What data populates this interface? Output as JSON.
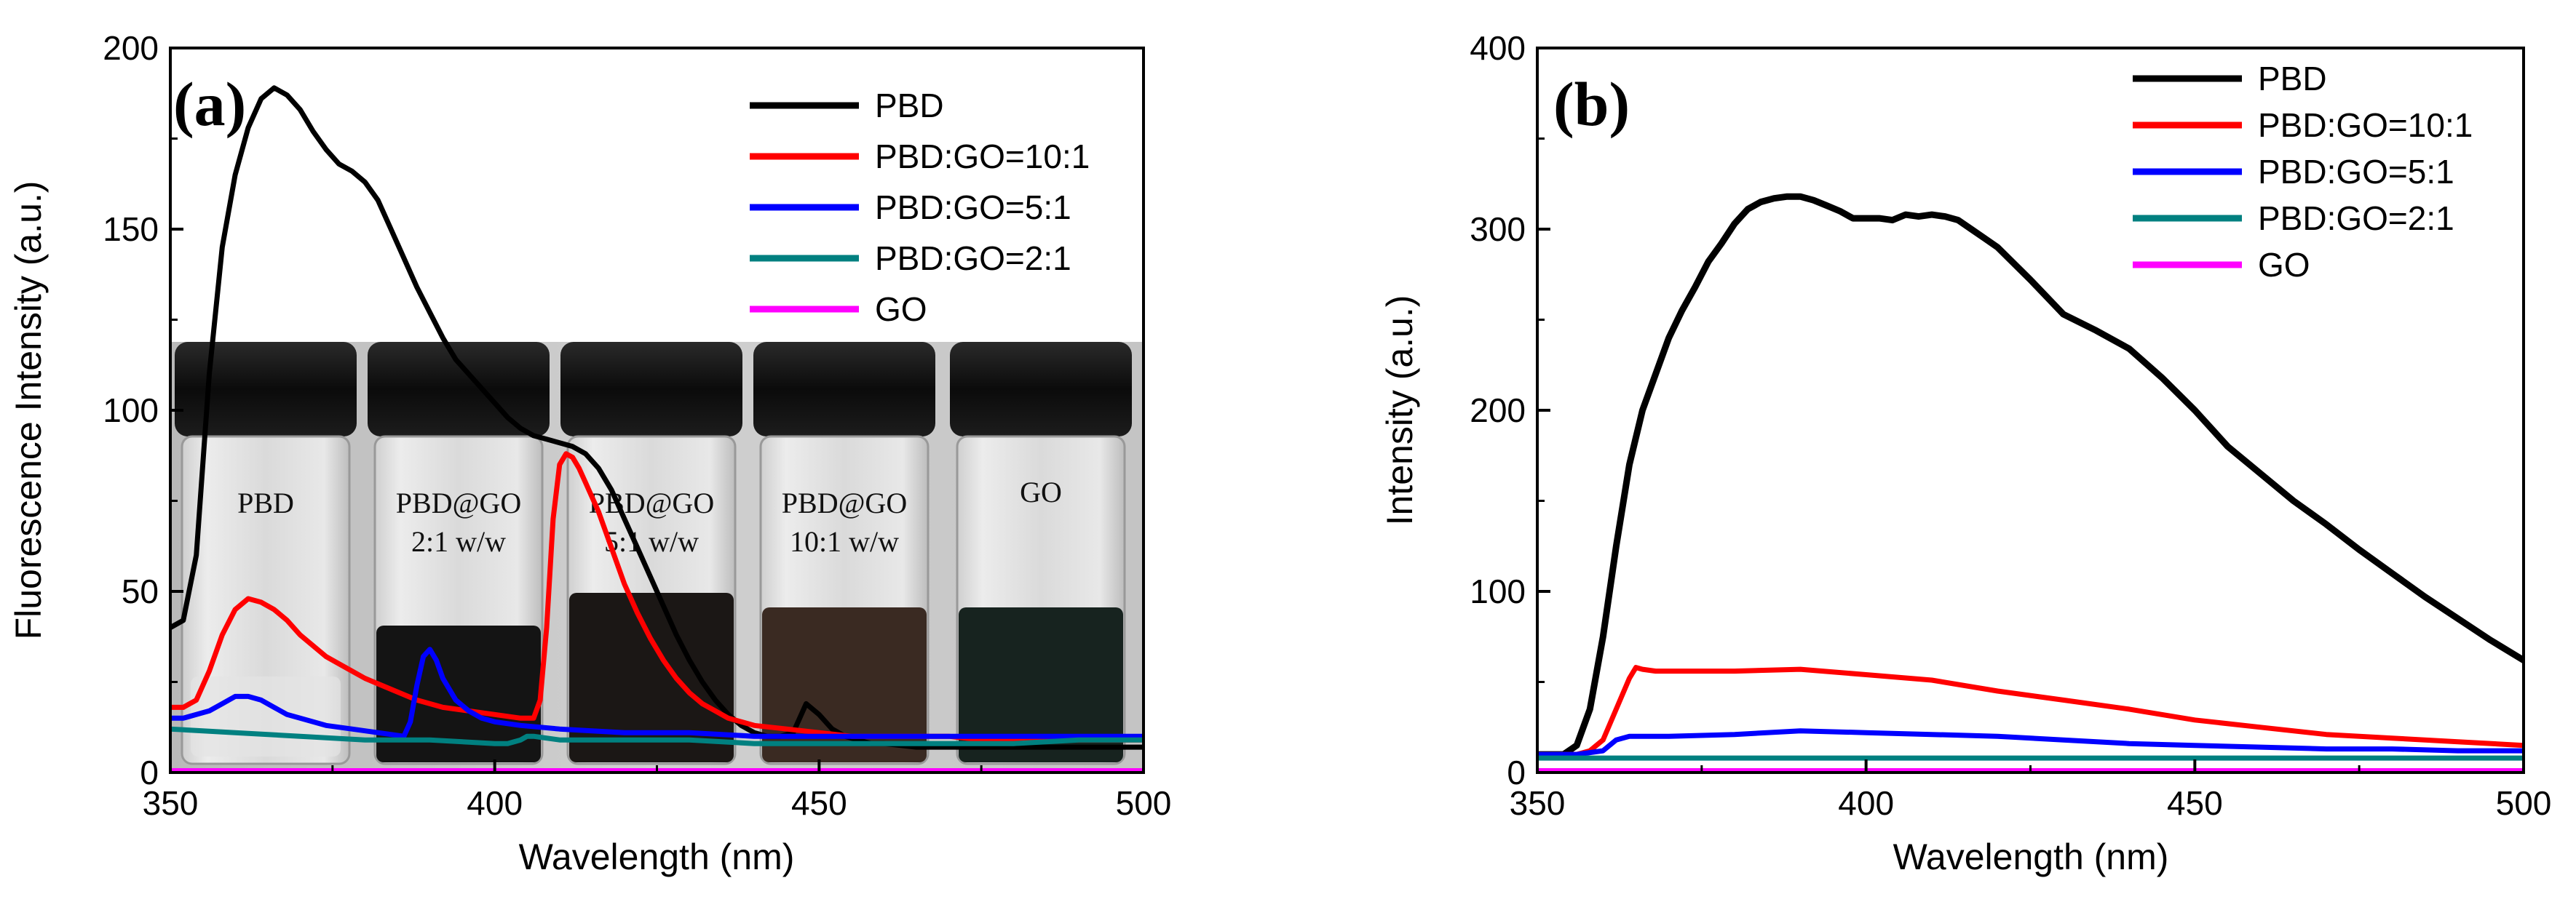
{
  "chart_data": [
    {
      "type": "line",
      "panel_label": "(a)",
      "xlabel": "Wavelength (nm)",
      "ylabel": "Fluorescence Intensity (a.u.)",
      "xlim": [
        350,
        500
      ],
      "ylim": [
        0,
        200
      ],
      "xticks": [
        350,
        400,
        450,
        500
      ],
      "yticks": [
        0,
        50,
        100,
        150,
        200
      ],
      "legend_position": "top-right",
      "inset_photo": {
        "description_labels": [
          "PBD",
          "PBD@GO 2:1 w/w",
          "PBD@GO 5:1 w/w",
          "PBD@GO 10:1 w/w",
          "GO"
        ]
      },
      "series": [
        {
          "name": "PBD",
          "color": "#000000",
          "x": [
            350,
            352,
            354,
            356,
            358,
            360,
            362,
            364,
            366,
            368,
            370,
            372,
            374,
            376,
            378,
            380,
            382,
            384,
            386,
            388,
            390,
            392,
            394,
            396,
            398,
            400,
            402,
            404,
            406,
            408,
            410,
            412,
            414,
            416,
            418,
            420,
            422,
            424,
            426,
            428,
            430,
            432,
            434,
            436,
            438,
            440,
            442,
            444,
            446,
            448,
            450,
            452,
            454,
            456,
            458,
            460,
            465,
            470,
            475,
            480,
            485,
            490,
            495,
            500
          ],
          "y": [
            40,
            42,
            60,
            110,
            145,
            165,
            178,
            186,
            189,
            187,
            183,
            177,
            172,
            168,
            166,
            163,
            158,
            150,
            142,
            134,
            127,
            120,
            114,
            110,
            106,
            102,
            98,
            95,
            93,
            92,
            91,
            90,
            88,
            84,
            78,
            70,
            62,
            54,
            46,
            38,
            31,
            25,
            20,
            16,
            13,
            11,
            10,
            10,
            11,
            19,
            16,
            12,
            10,
            9,
            8,
            8,
            7,
            7,
            7,
            7,
            7,
            7,
            7,
            7
          ]
        },
        {
          "name": "PBD:GO=10:1",
          "color": "#ff0000",
          "x": [
            350,
            352,
            354,
            356,
            358,
            360,
            362,
            364,
            366,
            368,
            370,
            372,
            374,
            376,
            378,
            380,
            384,
            388,
            392,
            396,
            400,
            404,
            406,
            407,
            408,
            409,
            410,
            411,
            412,
            413,
            414,
            416,
            418,
            420,
            422,
            424,
            426,
            428,
            430,
            432,
            434,
            436,
            438,
            440,
            445,
            450,
            455,
            460,
            465,
            470,
            475,
            480,
            485,
            490,
            495,
            500
          ],
          "y": [
            18,
            18,
            20,
            28,
            38,
            45,
            48,
            47,
            45,
            42,
            38,
            35,
            32,
            30,
            28,
            26,
            23,
            20,
            18,
            17,
            16,
            15,
            15,
            20,
            40,
            70,
            85,
            88,
            87,
            84,
            80,
            72,
            62,
            52,
            44,
            37,
            31,
            26,
            22,
            19,
            17,
            15,
            14,
            13,
            12,
            11,
            10,
            10,
            10,
            10,
            9,
            9,
            9,
            9,
            9,
            9
          ]
        },
        {
          "name": "PBD:GO=5:1",
          "color": "#0000ff",
          "x": [
            350,
            352,
            354,
            356,
            358,
            360,
            362,
            364,
            366,
            368,
            370,
            374,
            378,
            382,
            386,
            387,
            388,
            389,
            390,
            391,
            392,
            394,
            396,
            398,
            400,
            404,
            410,
            420,
            430,
            440,
            450,
            460,
            470,
            480,
            490,
            500
          ],
          "y": [
            15,
            15,
            16,
            17,
            19,
            21,
            21,
            20,
            18,
            16,
            15,
            13,
            12,
            11,
            10,
            14,
            24,
            32,
            34,
            31,
            26,
            20,
            17,
            15,
            14,
            13,
            12,
            11,
            11,
            10,
            10,
            10,
            10,
            10,
            10,
            10
          ]
        },
        {
          "name": "PBD:GO=2:1",
          "color": "#008080",
          "x": [
            350,
            360,
            370,
            380,
            390,
            400,
            402,
            404,
            405,
            406,
            410,
            420,
            430,
            440,
            450,
            460,
            470,
            480,
            490,
            500
          ],
          "y": [
            12,
            11,
            10,
            9,
            9,
            8,
            8,
            9,
            10,
            10,
            9,
            9,
            9,
            8,
            8,
            8,
            8,
            8,
            9,
            9
          ]
        },
        {
          "name": "GO",
          "color": "#ff00ff",
          "x": [
            350,
            400,
            450,
            500
          ],
          "y": [
            0.5,
            0.5,
            0.5,
            0.5
          ]
        }
      ]
    },
    {
      "type": "line",
      "panel_label": "(b)",
      "xlabel": "Wavelength (nm)",
      "ylabel": "Intensity (a.u.)",
      "xlim": [
        350,
        500
      ],
      "ylim": [
        0,
        400
      ],
      "xticks": [
        350,
        400,
        450,
        500
      ],
      "yticks": [
        0,
        100,
        200,
        300,
        400
      ],
      "legend_position": "top-right",
      "series": [
        {
          "name": "PBD",
          "color": "#000000",
          "x": [
            350,
            352,
            354,
            356,
            358,
            360,
            362,
            364,
            366,
            368,
            370,
            372,
            374,
            376,
            378,
            380,
            382,
            384,
            386,
            388,
            390,
            392,
            394,
            396,
            398,
            400,
            402,
            404,
            406,
            408,
            410,
            412,
            414,
            416,
            418,
            420,
            425,
            430,
            435,
            440,
            445,
            450,
            455,
            460,
            465,
            470,
            475,
            480,
            485,
            490,
            495,
            500
          ],
          "y": [
            10,
            10,
            10,
            15,
            35,
            75,
            125,
            170,
            200,
            220,
            240,
            255,
            268,
            282,
            292,
            303,
            311,
            315,
            317,
            318,
            318,
            316,
            313,
            310,
            306,
            306,
            306,
            305,
            308,
            307,
            308,
            307,
            305,
            300,
            295,
            290,
            272,
            253,
            244,
            234,
            218,
            200,
            180,
            165,
            150,
            137,
            123,
            110,
            97,
            85,
            73,
            62
          ]
        },
        {
          "name": "PBD:GO=10:1",
          "color": "#ff0000",
          "x": [
            350,
            356,
            358,
            360,
            362,
            364,
            365,
            366,
            368,
            370,
            380,
            390,
            400,
            410,
            420,
            430,
            440,
            450,
            460,
            470,
            480,
            490,
            500
          ],
          "y": [
            10,
            10,
            12,
            18,
            35,
            52,
            58,
            57,
            56,
            56,
            56,
            57,
            54,
            51,
            45,
            40,
            35,
            29,
            25,
            21,
            19,
            17,
            15
          ]
        },
        {
          "name": "PBD:GO=5:1",
          "color": "#0000ff",
          "x": [
            350,
            356,
            360,
            362,
            364,
            366,
            370,
            380,
            390,
            400,
            410,
            420,
            430,
            440,
            450,
            460,
            470,
            480,
            490,
            500
          ],
          "y": [
            10,
            10,
            12,
            18,
            20,
            20,
            20,
            21,
            23,
            22,
            21,
            20,
            18,
            16,
            15,
            14,
            13,
            13,
            12,
            12
          ]
        },
        {
          "name": "PBD:GO=2:1",
          "color": "#008080",
          "x": [
            350,
            380,
            400,
            420,
            450,
            480,
            500
          ],
          "y": [
            8,
            8,
            8,
            8,
            8,
            8,
            8
          ]
        },
        {
          "name": "GO",
          "color": "#ff00ff",
          "x": [
            350,
            400,
            450,
            500
          ],
          "y": [
            1,
            1,
            1,
            1
          ]
        }
      ]
    }
  ]
}
